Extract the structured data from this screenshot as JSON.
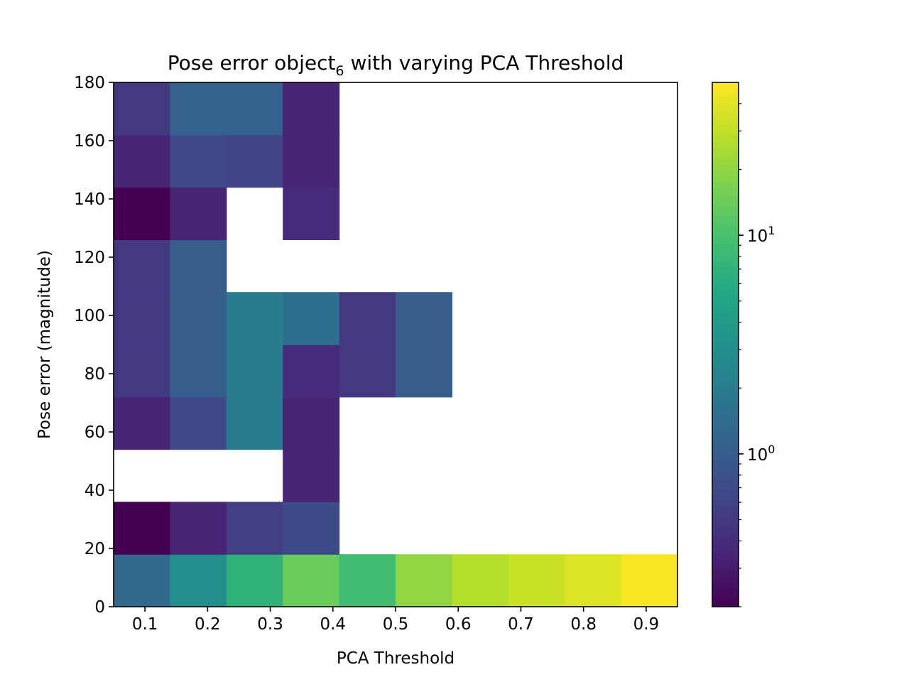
{
  "chart_data": {
    "type": "heatmap",
    "title": {
      "prefix": "Pose error object",
      "subscript": "6",
      "suffix": " with varying PCA Threshold"
    },
    "xlabel": "PCA Threshold",
    "ylabel": "Pose error (magnitude)",
    "x_ticks": [
      "0.1",
      "0.2",
      "0.3",
      "0.4",
      "0.5",
      "0.6",
      "0.7",
      "0.8",
      "0.9"
    ],
    "y_ticks": [
      "0",
      "20",
      "40",
      "60",
      "80",
      "100",
      "120",
      "140",
      "160",
      "180"
    ],
    "xlim": [
      0.05,
      0.95
    ],
    "ylim": [
      0,
      180
    ],
    "x_bin_edges": [
      0.05,
      0.14,
      0.23,
      0.32,
      0.41,
      0.5,
      0.59,
      0.68,
      0.77,
      0.86,
      0.95
    ],
    "y_bin_edges": [
      0,
      18,
      36,
      54,
      72,
      90,
      108,
      126,
      144,
      162,
      180
    ],
    "colormap": "viridis",
    "color_scale": "log",
    "color_range": [
      0.2,
      50
    ],
    "colorbar": {
      "position": "right",
      "major_ticks": [
        {
          "value": 1,
          "base": "10",
          "exp": "0"
        },
        {
          "value": 10,
          "base": "10",
          "exp": "1"
        }
      ],
      "minor_ticks": [
        0.2,
        0.3,
        0.4,
        0.5,
        0.6,
        0.7,
        0.8,
        0.9,
        2,
        3,
        4,
        5,
        6,
        7,
        8,
        9,
        20,
        30,
        40
      ]
    },
    "cells_note": "rows ordered from y=0-18 (bottom) to y=162-180 (top); columns ordered x bins left to right; null = empty (white)",
    "cells": [
      [
        1.3,
        3.0,
        7.0,
        14.0,
        9.0,
        20.0,
        27.0,
        32.0,
        38.0,
        48.0
      ],
      [
        0.2,
        0.35,
        0.55,
        0.7,
        null,
        null,
        null,
        null,
        null,
        null
      ],
      [
        null,
        null,
        null,
        0.35,
        null,
        null,
        null,
        null,
        null,
        null
      ],
      [
        0.35,
        0.65,
        2.0,
        0.35,
        null,
        null,
        null,
        null,
        null,
        null
      ],
      [
        0.5,
        1.0,
        2.0,
        0.4,
        0.5,
        1.0,
        null,
        null,
        null,
        null
      ],
      [
        0.5,
        1.0,
        2.0,
        1.5,
        0.5,
        1.0,
        null,
        null,
        null,
        null
      ],
      [
        0.5,
        1.0,
        null,
        null,
        null,
        null,
        null,
        null,
        null,
        null
      ],
      [
        0.2,
        0.35,
        null,
        0.4,
        null,
        null,
        null,
        null,
        null,
        null
      ],
      [
        0.35,
        0.65,
        0.6,
        0.35,
        null,
        null,
        null,
        null,
        null,
        null
      ],
      [
        0.5,
        1.1,
        1.1,
        0.35,
        null,
        null,
        null,
        null,
        null,
        null
      ]
    ]
  }
}
